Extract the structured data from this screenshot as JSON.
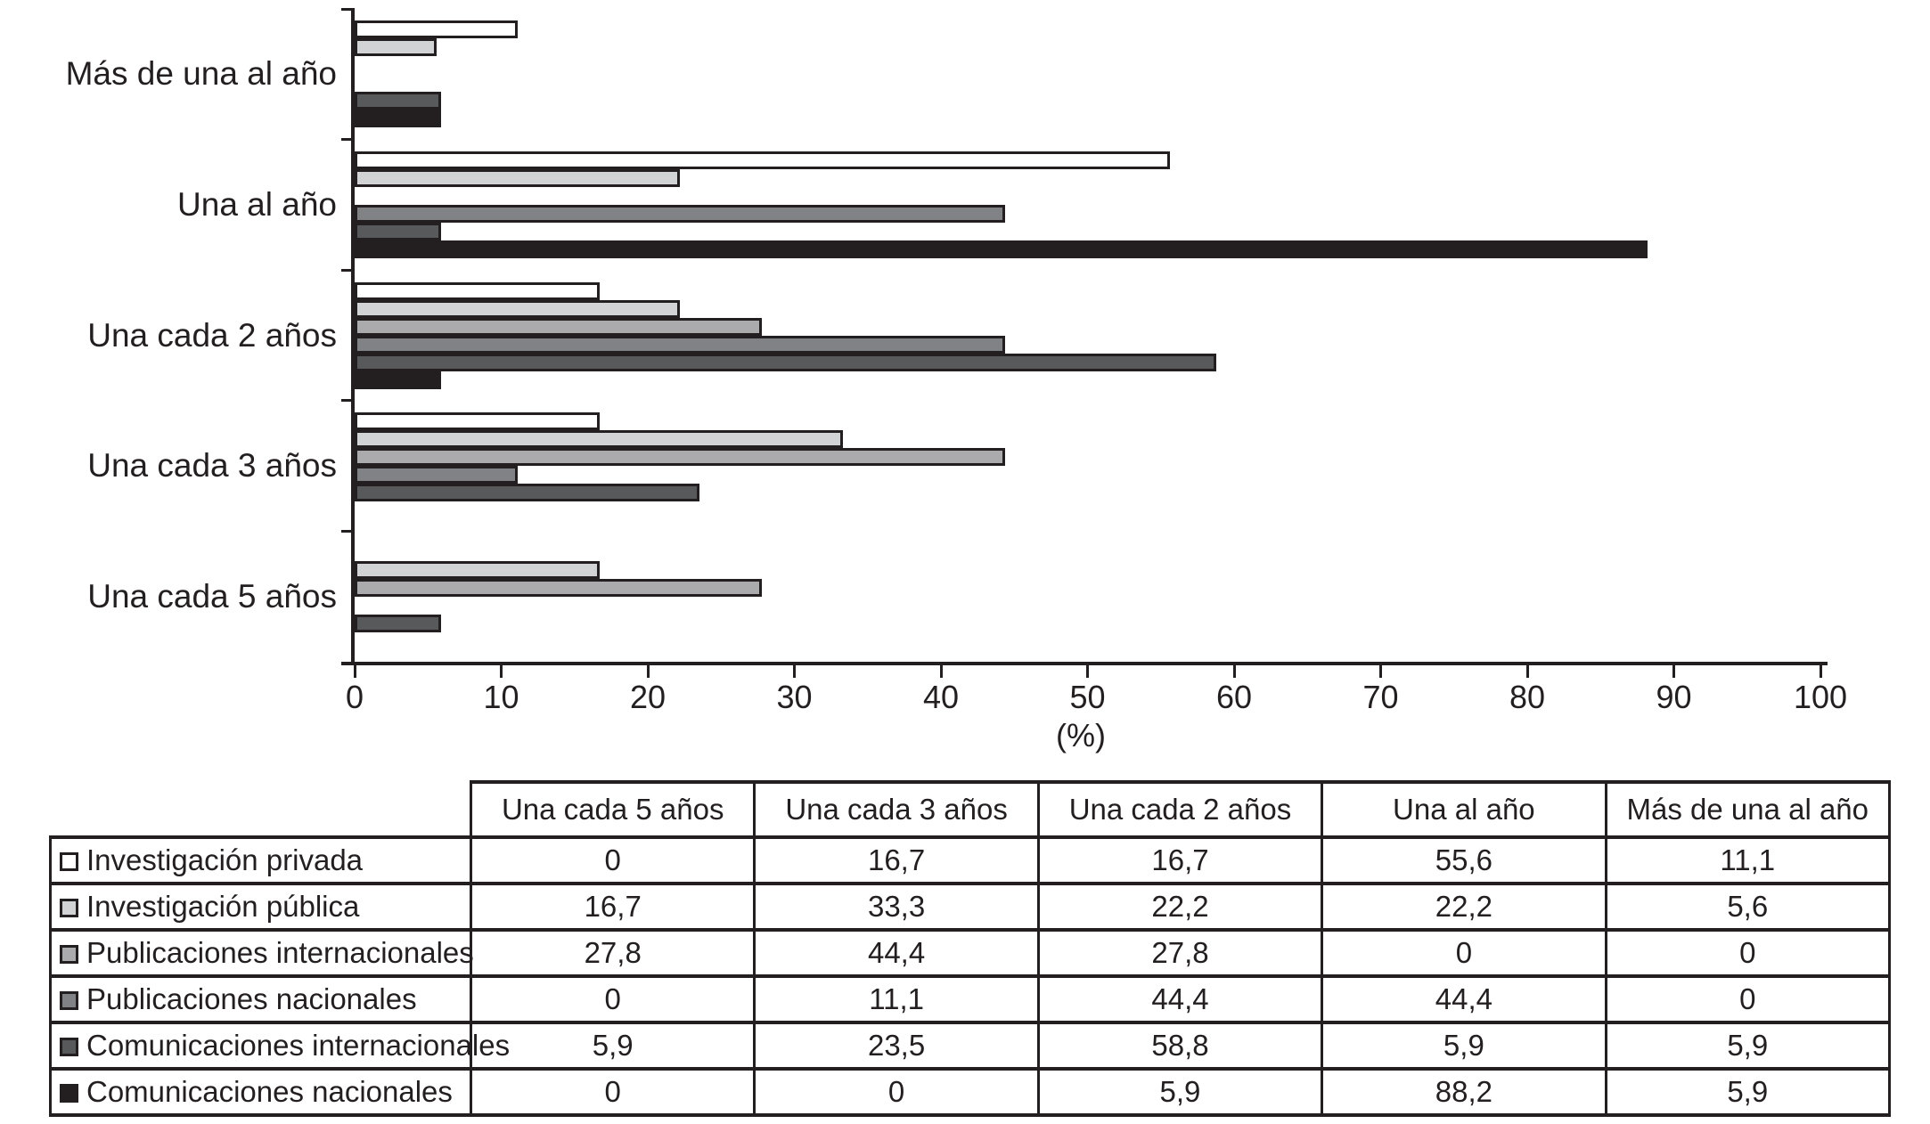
{
  "chart_data": {
    "type": "bar",
    "orientation": "horizontal",
    "xlabel": "(%)",
    "xlim": [
      0,
      100
    ],
    "xticks": [
      0,
      10,
      20,
      30,
      40,
      50,
      60,
      70,
      80,
      90,
      100
    ],
    "grid": false,
    "categories_top_to_bottom": [
      "Más de una al año",
      "Una al año",
      "Una cada 2 años",
      "Una cada 3 años",
      "Una cada 5 años"
    ],
    "series": [
      {
        "name": "Investigación privada",
        "color": "#ffffff",
        "values": [
          11.1,
          55.6,
          16.7,
          16.7,
          0
        ]
      },
      {
        "name": "Investigación pública",
        "color": "#d1d3d4",
        "values": [
          5.6,
          22.2,
          22.2,
          33.3,
          16.7
        ]
      },
      {
        "name": "Publicaciones internacionales",
        "color": "#ababad",
        "values": [
          0,
          0,
          27.8,
          44.4,
          27.8
        ]
      },
      {
        "name": "Publicaciones nacionales",
        "color": "#808285",
        "values": [
          0,
          44.4,
          44.4,
          11.1,
          0
        ]
      },
      {
        "name": "Comunicaciones internacionales",
        "color": "#58595b",
        "values": [
          5.9,
          5.9,
          58.8,
          23.5,
          5.9
        ]
      },
      {
        "name": "Comunicaciones nacionales",
        "color": "#231f20",
        "values": [
          5.9,
          88.2,
          5.9,
          0,
          0
        ]
      }
    ]
  },
  "table": {
    "columns": [
      "Una cada 5 años",
      "Una cada 3 años",
      "Una cada 2 años",
      "Una al año",
      "Más de una al año"
    ],
    "rows": [
      {
        "label": "Investigación privada",
        "swatch": "#ffffff",
        "values": [
          "0",
          "16,7",
          "16,7",
          "55,6",
          "11,1"
        ]
      },
      {
        "label": "Investigación pública",
        "swatch": "#d1d3d4",
        "values": [
          "16,7",
          "33,3",
          "22,2",
          "22,2",
          "5,6"
        ]
      },
      {
        "label": "Publicaciones internacionales",
        "swatch": "#ababad",
        "values": [
          "27,8",
          "44,4",
          "27,8",
          "0",
          "0"
        ]
      },
      {
        "label": "Publicaciones nacionales",
        "swatch": "#808285",
        "values": [
          "0",
          "11,1",
          "44,4",
          "44,4",
          "0"
        ]
      },
      {
        "label": "Comunicaciones internacionales",
        "swatch": "#58595b",
        "values": [
          "5,9",
          "23,5",
          "58,8",
          "5,9",
          "5,9"
        ]
      },
      {
        "label": "Comunicaciones nacionales",
        "swatch": "#231f20",
        "values": [
          "0",
          "0",
          "5,9",
          "88,2",
          "5,9"
        ]
      }
    ]
  },
  "colors": {
    "ink": "#231f20",
    "background": "#ffffff"
  }
}
